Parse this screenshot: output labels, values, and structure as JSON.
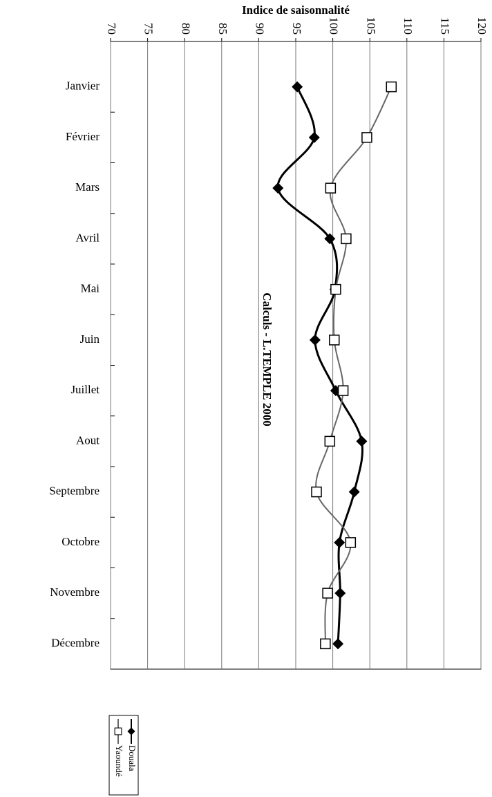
{
  "chart_data": {
    "type": "line",
    "orientation": "horizontal",
    "smooth": true,
    "x_label": "Indice de saisonnalité",
    "annotation": "Calculs - L.TEMPLE 2000",
    "categories": [
      "Janvier",
      "Février",
      "Mars",
      "Avril",
      "Mai",
      "Juin",
      "Juillet",
      "Aout",
      "Septembre",
      "Octobre",
      "Novembre",
      "Décembre"
    ],
    "series": [
      {
        "name": "Douala",
        "color": "#000000",
        "marker": "diamond",
        "values": [
          95.2,
          97.5,
          92.6,
          99.6,
          100.3,
          97.6,
          100.4,
          103.9,
          102.9,
          100.9,
          101.0,
          100.7
        ]
      },
      {
        "name": "Yaoundé",
        "color": "#666666",
        "marker": "square",
        "values": [
          107.9,
          104.6,
          99.7,
          101.8,
          100.4,
          100.2,
          101.4,
          99.6,
          97.8,
          102.4,
          99.3,
          99.0
        ]
      }
    ],
    "xlim": [
      70,
      120
    ],
    "xticks": [
      70,
      75,
      80,
      85,
      90,
      95,
      100,
      105,
      110,
      115,
      120
    ],
    "grid": true
  }
}
